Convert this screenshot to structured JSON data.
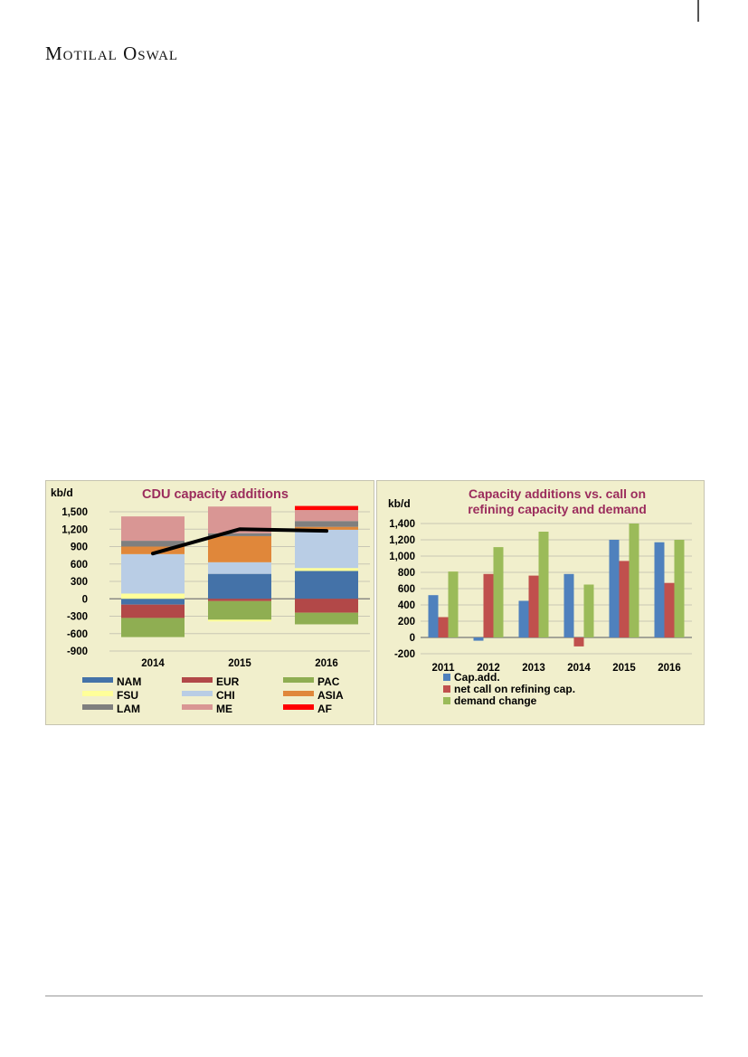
{
  "brand": "Motilal Oswal",
  "chart_data": [
    {
      "type": "bar",
      "stacked": true,
      "title": "CDU capacity additions",
      "ylabel": "kb/d",
      "ylim": [
        -900,
        1500
      ],
      "yticks": [
        1500,
        1200,
        900,
        600,
        300,
        0,
        -300,
        -600,
        -900
      ],
      "ytick_labels": [
        "1,500",
        "1,200",
        "900",
        "600",
        "300",
        "0",
        "-300",
        "-600",
        "-900"
      ],
      "categories": [
        "2014",
        "2015",
        "2016"
      ],
      "grid": true,
      "legend_position": "bottom",
      "series": [
        {
          "name": "NAM",
          "color": "#4472a8",
          "values": [
            -100,
            430,
            480
          ]
        },
        {
          "name": "EUR",
          "color": "#b24848",
          "values": [
            -230,
            -40,
            -240
          ]
        },
        {
          "name": "PAC",
          "color": "#8fae52",
          "values": [
            -330,
            -320,
            -200
          ]
        },
        {
          "name": "FSU",
          "color": "#ffff99",
          "values": [
            90,
            -30,
            50
          ]
        },
        {
          "name": "CHI",
          "color": "#b9cde5",
          "values": [
            680,
            200,
            660
          ]
        },
        {
          "name": "ASIA",
          "color": "#e0873a",
          "values": [
            130,
            450,
            50
          ]
        },
        {
          "name": "LAM",
          "color": "#7f7f7f",
          "values": [
            100,
            50,
            100
          ]
        },
        {
          "name": "ME",
          "color": "#d99694",
          "values": [
            420,
            460,
            190
          ]
        },
        {
          "name": "AF",
          "color": "#ff0000",
          "values": [
            0,
            0,
            70
          ]
        }
      ],
      "line": {
        "values": [
          780,
          1200,
          1170
        ],
        "color": "#000000"
      }
    },
    {
      "type": "bar",
      "title": "Capacity additions vs. call on refining capacity and demand",
      "title_lines": [
        "Capacity additions vs. call on",
        "refining capacity and demand"
      ],
      "ylabel": "kb/d",
      "ylim": [
        -200,
        1400
      ],
      "yticks": [
        1400,
        1200,
        1000,
        800,
        600,
        400,
        200,
        0,
        -200
      ],
      "ytick_labels": [
        "1,400",
        "1,200",
        "1,000",
        "800",
        "600",
        "400",
        "200",
        "0",
        "-200"
      ],
      "categories": [
        "2011",
        "2012",
        "2013",
        "2014",
        "2015",
        "2016"
      ],
      "grid": true,
      "legend_position": "bottom-left",
      "series": [
        {
          "name": "Cap.add.",
          "color": "#4f81bd",
          "values": [
            520,
            -40,
            450,
            780,
            1200,
            1170
          ]
        },
        {
          "name": "net call on refining cap.",
          "color": "#c0504d",
          "values": [
            250,
            780,
            760,
            -110,
            940,
            670
          ]
        },
        {
          "name": "demand change",
          "color": "#9bbb59",
          "values": [
            810,
            1110,
            1300,
            650,
            1400,
            1200
          ]
        }
      ]
    }
  ]
}
